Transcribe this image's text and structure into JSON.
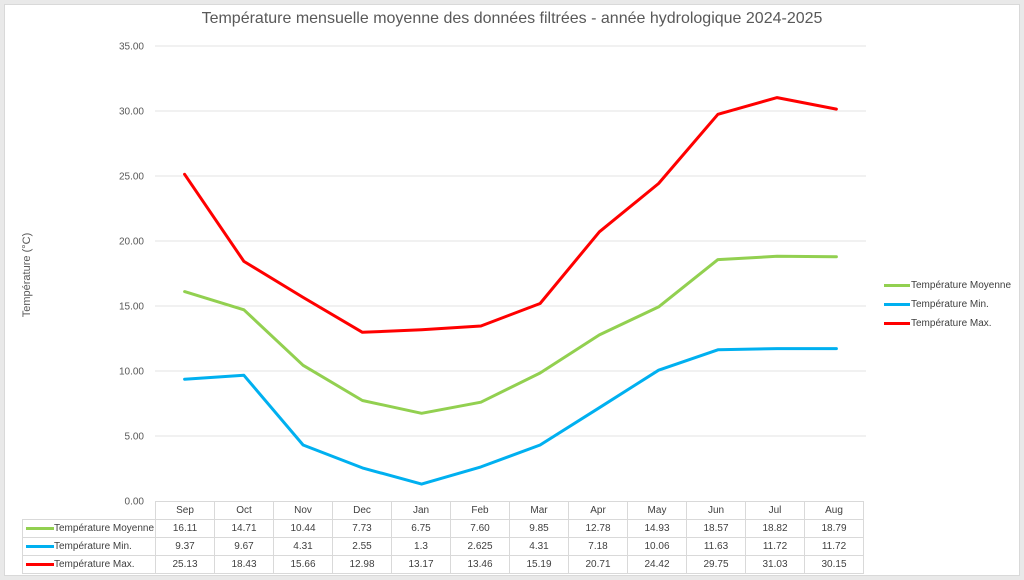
{
  "chart_data": {
    "type": "line",
    "title": "Température mensuelle moyenne des données filtrées - année hydrologique 2024-2025",
    "xlabel": "",
    "ylabel": "Température (°C)",
    "ylim": [
      0,
      35
    ],
    "yticks": [
      "0.00",
      "5.00",
      "10.00",
      "15.00",
      "20.00",
      "25.00",
      "30.00",
      "35.00"
    ],
    "grid": true,
    "legend_position": "right",
    "categories": [
      "Sep",
      "Oct",
      "Nov",
      "Dec",
      "Jan",
      "Feb",
      "Mar",
      "Apr",
      "May",
      "Jun",
      "Jul",
      "Aug"
    ],
    "series": [
      {
        "name": "Température Moyenne",
        "color": "#92d050",
        "values": [
          16.11,
          14.71,
          10.44,
          7.73,
          6.75,
          7.6,
          9.85,
          12.78,
          14.93,
          18.57,
          18.82,
          18.79
        ],
        "labels": [
          "16.11",
          "14.71",
          "10.44",
          "7.73",
          "6.75",
          "7.60",
          "9.85",
          "12.78",
          "14.93",
          "18.57",
          "18.82",
          "18.79"
        ]
      },
      {
        "name": "Température Min.",
        "color": "#00b0f0",
        "values": [
          9.37,
          9.67,
          4.31,
          2.55,
          1.3,
          2.625,
          4.31,
          7.18,
          10.06,
          11.63,
          11.72,
          11.72
        ],
        "labels": [
          "9.37",
          "9.67",
          "4.31",
          "2.55",
          "1.3",
          "2.625",
          "4.31",
          "7.18",
          "10.06",
          "11.63",
          "11.72",
          "11.72"
        ]
      },
      {
        "name": "Température Max.",
        "color": "#ff0000",
        "values": [
          25.13,
          18.43,
          15.66,
          12.98,
          13.17,
          13.46,
          15.19,
          20.71,
          24.42,
          29.75,
          31.03,
          30.15
        ],
        "labels": [
          "25.13",
          "18.43",
          "15.66",
          "12.98",
          "13.17",
          "13.46",
          "15.19",
          "20.71",
          "24.42",
          "29.75",
          "31.03",
          "30.15"
        ]
      }
    ]
  }
}
